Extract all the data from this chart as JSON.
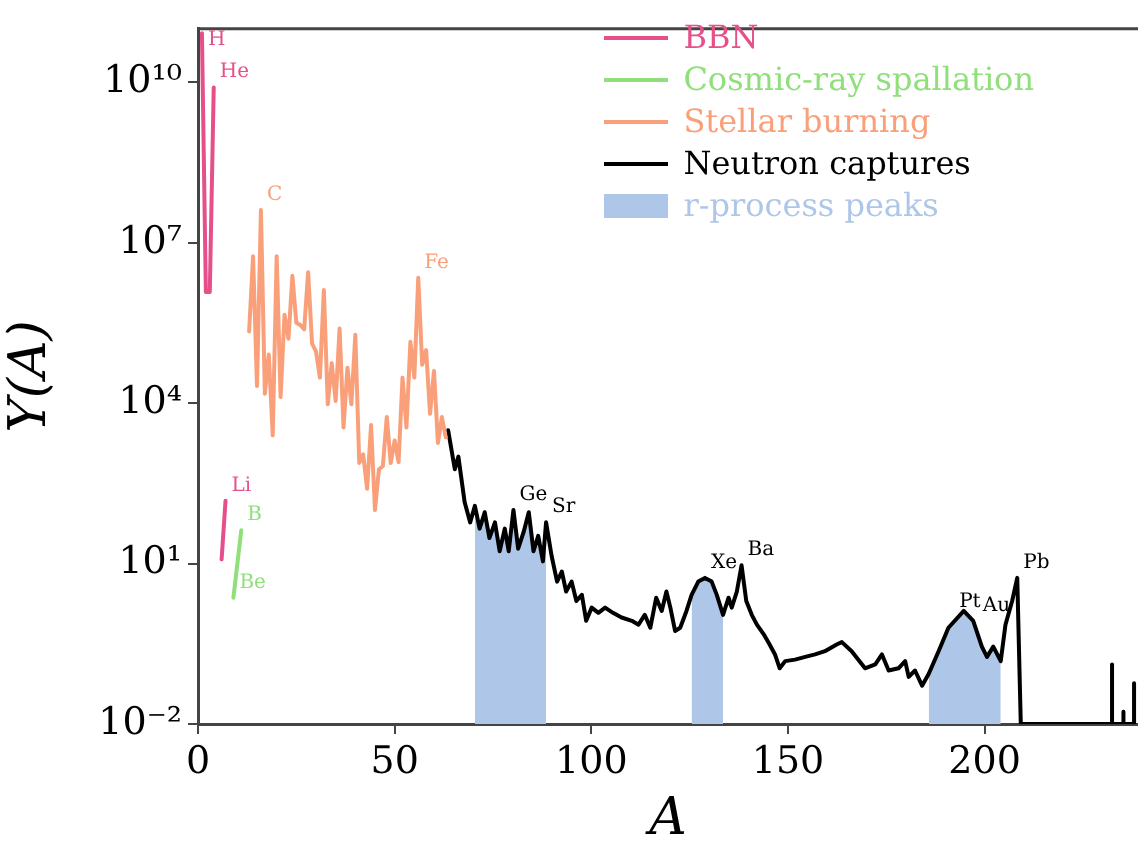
{
  "chart_data": {
    "type": "line",
    "xlabel": "A",
    "ylabel": "Y(A)",
    "log": "y",
    "grid": false,
    "legend": "top right",
    "xlim": [
      0,
      239
    ],
    "xticks": [
      0,
      50,
      100,
      150,
      200
    ],
    "ylim": [
      0.01,
      100000000000.0
    ],
    "yticks": [
      {
        "value": 0.01,
        "label": "10⁻²"
      },
      {
        "value": 10,
        "label": "10¹"
      },
      {
        "value": 10000,
        "label": "10⁴"
      },
      {
        "value": 10000000,
        "label": "10⁷"
      },
      {
        "value": 10000000000,
        "label": "10¹⁰"
      }
    ],
    "series": [
      {
        "name": "BBN",
        "color": "#e5508a",
        "x": [
          1,
          2,
          3,
          4,
          5,
          6,
          7
        ],
        "values": [
          83000000000.0,
          1200000.0,
          1200000.0,
          8000000000.0,
          null,
          12,
          150
        ]
      },
      {
        "name": "Cosmic-ray spallation",
        "color": "#8fdf7b",
        "x": [
          9,
          11
        ],
        "values": [
          2.3,
          42
        ]
      },
      {
        "name": "Stellar burning",
        "color": "#f9a07a",
        "x": [
          13,
          14,
          15,
          16,
          17,
          18,
          19,
          20,
          21,
          22,
          23,
          24,
          25,
          26,
          27,
          28,
          29,
          30,
          31,
          32,
          33,
          34,
          35,
          36,
          37,
          38,
          39,
          40,
          41,
          42,
          43,
          44,
          45,
          46,
          47,
          48,
          49,
          50,
          51,
          52,
          53,
          54,
          55,
          56,
          57,
          58,
          59,
          60,
          61,
          62,
          63
        ],
        "values": [
          220000.0,
          5600000.0,
          21000.0,
          41000000.0,
          15000.0,
          81000.0,
          2500.0,
          5600000.0,
          13000.0,
          450000.0,
          160000.0,
          2400000.0,
          320000.0,
          290000.0,
          240000.0,
          2800000.0,
          130000.0,
          93000.0,
          30000.0,
          1300000.0,
          9500.0,
          56000.0,
          11000.0,
          250000.0,
          3500.0,
          46000.0,
          9500.0,
          190000.0,
          760,
          1100,
          250,
          3900,
          100,
          580,
          660,
          5500,
          760,
          2000,
          790,
          30000.0,
          3500,
          140000.0,
          30000.0,
          2200000.0,
          52000.0,
          98000.0,
          6300,
          40000.0,
          1800,
          5500,
          2300
        ]
      },
      {
        "name": "Neutron captures",
        "color": "#000000",
        "x": [
          63.6,
          65.3,
          66.2,
          67.8,
          69.2,
          70.4,
          71.6,
          72.9,
          74.1,
          75.5,
          76.7,
          78.0,
          79.0,
          80.2,
          81.4,
          82.8,
          84.1,
          85.3,
          86.5,
          87.7,
          88.5,
          89.9,
          91.3,
          92.5,
          93.6,
          95.0,
          96.2,
          97.6,
          98.7,
          100.1,
          101.8,
          103.5,
          105.5,
          107.7,
          110.3,
          112.0,
          113.6,
          115.0,
          116.5,
          117.9,
          119.1,
          120.1,
          121.3,
          122.6,
          124.2,
          125.5,
          127.2,
          128.9,
          130.6,
          131.9,
          133.5,
          134.9,
          135.7,
          137.0,
          138.2,
          139.4,
          140.8,
          142.1,
          143.8,
          145.3,
          146.7,
          147.9,
          149.3,
          151.8,
          154.4,
          156.9,
          159.4,
          162.5,
          163.7,
          166.2,
          169.6,
          172.2,
          173.9,
          175.6,
          178.1,
          179.8,
          180.7,
          182.3,
          184.1,
          185.8,
          188.3,
          190.8,
          194.7,
          197.1,
          199.3,
          200.6,
          202.2,
          204.1,
          205.3,
          207.0,
          208.3,
          209.2,
          232.4,
          232.4,
          232.4,
          235.3,
          235.3,
          235.3,
          238,
          238,
          238
        ],
        "values": [
          3100,
          580,
          1000,
          140,
          59,
          120,
          45,
          91,
          30,
          59,
          17,
          45,
          17,
          100,
          19,
          39,
          91,
          17,
          33,
          11,
          59,
          14,
          4.6,
          7.1,
          3.0,
          4.6,
          2.0,
          2.6,
          0.85,
          1.5,
          1.2,
          1.5,
          1.2,
          0.98,
          0.85,
          0.72,
          1.1,
          0.63,
          2.3,
          1.3,
          3.0,
          1.5,
          0.55,
          0.63,
          1.3,
          2.6,
          4.6,
          5.4,
          4.6,
          2.6,
          1.1,
          2.3,
          1.5,
          3.0,
          9.3,
          2.0,
          1.1,
          0.72,
          0.48,
          0.31,
          0.2,
          0.11,
          0.15,
          0.16,
          0.18,
          0.2,
          0.23,
          0.31,
          0.34,
          0.23,
          0.11,
          0.13,
          0.2,
          0.1,
          0.11,
          0.15,
          0.076,
          0.1,
          0.052,
          0.087,
          0.23,
          0.63,
          1.3,
          0.85,
          0.28,
          0.18,
          0.28,
          0.15,
          0.72,
          2.0,
          5.4,
          0.01,
          0.01,
          0.13,
          0.01,
          0.01,
          0.017,
          0.01,
          0.01,
          0.058,
          0.01
        ]
      },
      {
        "name": "r-process peaks",
        "type": "area",
        "color": "#aec7e8",
        "x": [
          70.4,
          71.6,
          72.9,
          74.1,
          75.5,
          76.7,
          78.0,
          79.0,
          80.2,
          81.4,
          82.8,
          84.1,
          85.3,
          86.5,
          87.7,
          88.5
        ],
        "values": [
          120,
          45,
          91,
          30,
          59,
          17,
          45,
          17,
          100,
          19,
          39,
          91,
          17,
          33,
          11,
          59
        ]
      },
      {
        "type": "area",
        "color": "#aec7e8",
        "x": [
          125.5,
          127.2,
          128.9,
          130.6,
          131.9,
          133.5
        ],
        "values": [
          2.6,
          4.6,
          5.4,
          4.6,
          2.6,
          1.1
        ]
      },
      {
        "type": "area",
        "color": "#aec7e8",
        "x": [
          185.8,
          188.3,
          190.8,
          194.7,
          197.1,
          199.3,
          200.6,
          202.2,
          204.1
        ],
        "values": [
          0.087,
          0.23,
          0.63,
          1.3,
          0.85,
          0.28,
          0.18,
          0.28,
          0.15
        ]
      }
    ],
    "annotations": [
      {
        "text": "H",
        "x": 1,
        "y": 83000000000.0
      },
      {
        "text": "He",
        "x": 4,
        "y": 8000000000.0
      },
      {
        "text": "Li",
        "x": 7,
        "y": 150
      },
      {
        "text": "B",
        "x": 11,
        "y": 42
      },
      {
        "text": "Be",
        "x": 9,
        "y": 2.3
      },
      {
        "text": "C",
        "x": 16,
        "y": 41000000.0
      },
      {
        "text": "Fe",
        "x": 56,
        "y": 2200000.0
      },
      {
        "text": "Ge",
        "x": 80.2,
        "y": 100
      },
      {
        "text": "Sr",
        "x": 88.5,
        "y": 59
      },
      {
        "text": "Xe",
        "x": 128.9,
        "y": 5.4
      },
      {
        "text": "Ba",
        "x": 138.2,
        "y": 9.3
      },
      {
        "text": "Pt",
        "x": 192,
        "y": 1.0
      },
      {
        "text": "Au",
        "x": 198,
        "y": 0.85
      },
      {
        "text": "Pb",
        "x": 208.3,
        "y": 5.4
      }
    ]
  }
}
